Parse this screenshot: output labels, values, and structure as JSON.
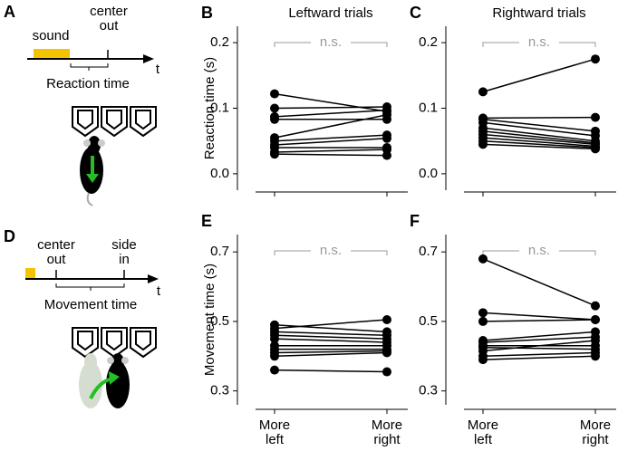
{
  "diagrams": [
    {
      "panel": "A",
      "stimulus": "sound",
      "event": "center out",
      "interval": "Reaction time",
      "axis": "t"
    },
    {
      "panel": "D",
      "event": "center out",
      "event2": "side in",
      "interval": "Movement time",
      "axis": "t"
    }
  ],
  "chart_data": [
    {
      "type": "line",
      "panel": "B",
      "title": "Leftward trials",
      "y_label": "Reaction time (s)",
      "annotation": "n.s.",
      "color": "#000000",
      "ylim": [
        -0.025,
        0.225
      ],
      "yticks": [
        {
          "value": 0,
          "label": "0.0"
        },
        0.1,
        0.2
      ],
      "series": [
        {
          "values": [
            0.122,
            0.095
          ]
        },
        {
          "values": [
            0.1,
            0.102
          ]
        },
        {
          "values": [
            0.087,
            0.097
          ]
        },
        {
          "values": [
            0.083,
            0.083
          ]
        },
        {
          "values": [
            0.055,
            0.09
          ]
        },
        {
          "values": [
            0.05,
            0.059
          ]
        },
        {
          "values": [
            0.044,
            0.054
          ]
        },
        {
          "values": [
            0.04,
            0.04
          ]
        },
        {
          "values": [
            0.033,
            0.037
          ]
        },
        {
          "values": [
            0.03,
            0.028
          ]
        }
      ]
    },
    {
      "type": "line",
      "panel": "C",
      "title": "Rightward trials",
      "annotation": "n.s.",
      "color": "#000000",
      "ylim": [
        -0.025,
        0.225
      ],
      "yticks": [
        {
          "value": 0,
          "label": "0.0"
        },
        0.1,
        0.2
      ],
      "series": [
        {
          "values": [
            0.125,
            0.175
          ]
        },
        {
          "values": [
            0.085,
            0.086
          ]
        },
        {
          "values": [
            0.083,
            0.065
          ]
        },
        {
          "values": [
            0.078,
            0.058
          ]
        },
        {
          "values": [
            0.07,
            0.05
          ]
        },
        {
          "values": [
            0.065,
            0.047
          ]
        },
        {
          "values": [
            0.06,
            0.045
          ]
        },
        {
          "values": [
            0.055,
            0.042
          ]
        },
        {
          "values": [
            0.05,
            0.04
          ]
        },
        {
          "values": [
            0.045,
            0.038
          ]
        }
      ]
    },
    {
      "type": "line",
      "panel": "E",
      "y_label": "Movement time (s)",
      "annotation": "n.s.",
      "color": "#000000",
      "categories": [
        "More left",
        "More right"
      ],
      "ylim": [
        0.26,
        0.75
      ],
      "yticks": [
        0.3,
        0.5,
        0.7
      ],
      "series": [
        {
          "values": [
            0.49,
            0.47
          ]
        },
        {
          "values": [
            0.48,
            0.505
          ]
        },
        {
          "values": [
            0.47,
            0.46
          ]
        },
        {
          "values": [
            0.46,
            0.45
          ]
        },
        {
          "values": [
            0.45,
            0.44
          ]
        },
        {
          "values": [
            0.43,
            0.43
          ]
        },
        {
          "values": [
            0.42,
            0.42
          ]
        },
        {
          "values": [
            0.41,
            0.415
          ]
        },
        {
          "values": [
            0.4,
            0.41
          ]
        },
        {
          "values": [
            0.36,
            0.355
          ]
        }
      ]
    },
    {
      "type": "line",
      "panel": "F",
      "annotation": "n.s.",
      "color": "#000000",
      "categories": [
        "More left",
        "More right"
      ],
      "ylim": [
        0.26,
        0.75
      ],
      "yticks": [
        0.3,
        0.5,
        0.7
      ],
      "series": [
        {
          "values": [
            0.68,
            0.545
          ]
        },
        {
          "values": [
            0.525,
            0.505
          ]
        },
        {
          "values": [
            0.5,
            0.505
          ]
        },
        {
          "values": [
            0.445,
            0.47
          ]
        },
        {
          "values": [
            0.44,
            0.455
          ]
        },
        {
          "values": [
            0.43,
            0.43
          ]
        },
        {
          "values": [
            0.425,
            0.42
          ]
        },
        {
          "values": [
            0.415,
            0.445
          ]
        },
        {
          "values": [
            0.4,
            0.41
          ]
        },
        {
          "values": [
            0.39,
            0.4
          ]
        }
      ]
    }
  ]
}
